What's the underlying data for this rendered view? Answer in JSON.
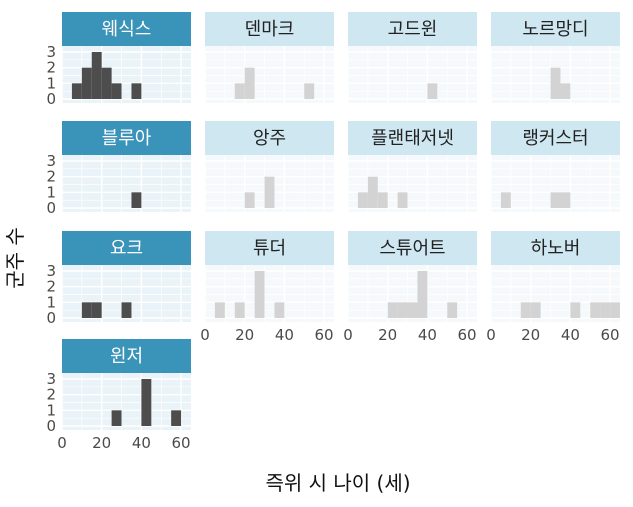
{
  "chart_data": {
    "type": "bar",
    "xlabel": "즉위 시 나이 (세)",
    "ylabel": "군주 수",
    "x_ticks": [
      0,
      20,
      40,
      60
    ],
    "y_ticks": [
      0,
      1,
      2,
      3
    ],
    "xlim": [
      0,
      65
    ],
    "ylim": [
      0,
      3
    ],
    "bin_width": 5,
    "colors": {
      "highlight_bar": "#4d4d4d",
      "muted_bar": "#d3d3d3",
      "highlight_strip": "#3a93b8",
      "muted_strip": "#cfe7f1",
      "highlight_strip_text": "#ffffff",
      "muted_strip_text": "#222222",
      "panel_bg": "#eaf3f8",
      "muted_panel_bg": "#f6f9fb",
      "grid": "#ffffff"
    },
    "panels": [
      {
        "name": "웨식스",
        "highlight": true,
        "bars": [
          {
            "x": 7.5,
            "y": 1
          },
          {
            "x": 12.5,
            "y": 2
          },
          {
            "x": 17.5,
            "y": 3
          },
          {
            "x": 22.5,
            "y": 2
          },
          {
            "x": 27.5,
            "y": 1
          },
          {
            "x": 37.5,
            "y": 1
          }
        ]
      },
      {
        "name": "덴마크",
        "highlight": false,
        "bars": [
          {
            "x": 17.5,
            "y": 1
          },
          {
            "x": 22.5,
            "y": 2
          },
          {
            "x": 52.5,
            "y": 1
          }
        ]
      },
      {
        "name": "고드윈",
        "highlight": false,
        "bars": [
          {
            "x": 42.5,
            "y": 1
          }
        ]
      },
      {
        "name": "노르망디",
        "highlight": false,
        "bars": [
          {
            "x": 32.5,
            "y": 2
          },
          {
            "x": 37.5,
            "y": 1
          }
        ]
      },
      {
        "name": "블루아",
        "highlight": true,
        "bars": [
          {
            "x": 37.5,
            "y": 1
          }
        ]
      },
      {
        "name": "앙주",
        "highlight": false,
        "bars": [
          {
            "x": 22.5,
            "y": 1
          },
          {
            "x": 32.5,
            "y": 2
          }
        ]
      },
      {
        "name": "플랜태저넷",
        "highlight": false,
        "bars": [
          {
            "x": 7.5,
            "y": 1
          },
          {
            "x": 12.5,
            "y": 2
          },
          {
            "x": 17.5,
            "y": 1
          },
          {
            "x": 27.5,
            "y": 1
          }
        ]
      },
      {
        "name": "랭커스터",
        "highlight": false,
        "bars": [
          {
            "x": 7.5,
            "y": 1
          },
          {
            "x": 32.5,
            "y": 1
          },
          {
            "x": 37.5,
            "y": 1
          }
        ]
      },
      {
        "name": "요크",
        "highlight": true,
        "bars": [
          {
            "x": 12.5,
            "y": 1
          },
          {
            "x": 17.5,
            "y": 1
          },
          {
            "x": 32.5,
            "y": 1
          }
        ]
      },
      {
        "name": "튜더",
        "highlight": false,
        "bars": [
          {
            "x": 7.5,
            "y": 1
          },
          {
            "x": 17.5,
            "y": 1
          },
          {
            "x": 27.5,
            "y": 3
          },
          {
            "x": 37.5,
            "y": 1
          }
        ]
      },
      {
        "name": "스튜어트",
        "highlight": false,
        "bars": [
          {
            "x": 22.5,
            "y": 1
          },
          {
            "x": 27.5,
            "y": 1
          },
          {
            "x": 32.5,
            "y": 1
          },
          {
            "x": 37.5,
            "y": 3
          },
          {
            "x": 52.5,
            "y": 1
          }
        ]
      },
      {
        "name": "하노버",
        "highlight": false,
        "bars": [
          {
            "x": 17.5,
            "y": 1
          },
          {
            "x": 22.5,
            "y": 1
          },
          {
            "x": 42.5,
            "y": 1
          },
          {
            "x": 52.5,
            "y": 1
          },
          {
            "x": 57.5,
            "y": 1
          },
          {
            "x": 62.5,
            "y": 1
          }
        ]
      },
      {
        "name": "윈저",
        "highlight": true,
        "bars": [
          {
            "x": 27.5,
            "y": 1
          },
          {
            "x": 42.5,
            "y": 3
          },
          {
            "x": 57.5,
            "y": 1
          }
        ]
      }
    ]
  }
}
